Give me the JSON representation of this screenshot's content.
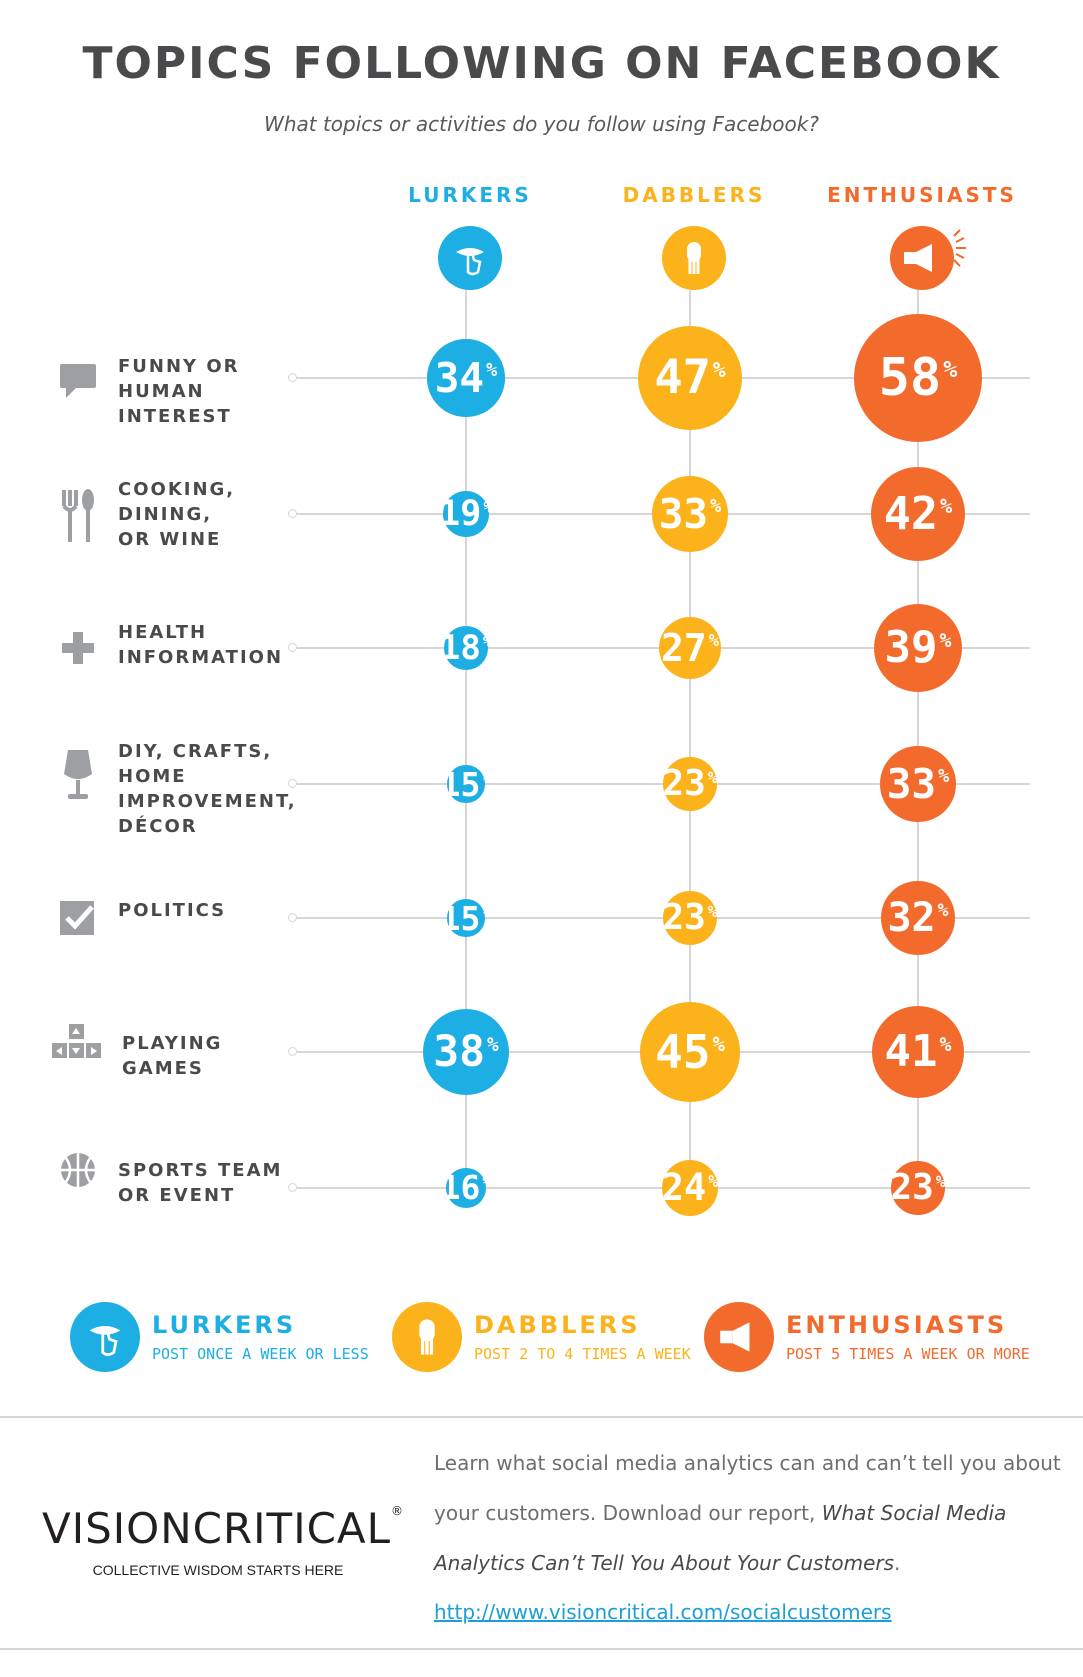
{
  "title": "TOPICS FOLLOWING ON FACEBOOK",
  "subtitle": "What topics or activities do you follow using Facebook?",
  "colors": {
    "lurkers": "#1daee3",
    "dabblers": "#fbb21b",
    "enthusiasts": "#f26b2d"
  },
  "columns": [
    {
      "key": "lurkers",
      "name": "LURKERS",
      "icon": "hand-pointer-icon",
      "color": "#1daee3"
    },
    {
      "key": "dabblers",
      "name": "DABBLERS",
      "icon": "hand-mouse-icon",
      "color": "#fbb21b"
    },
    {
      "key": "enthusiasts",
      "name": "ENTHUSIASTS",
      "icon": "megaphone-icon",
      "color": "#f26b2d"
    }
  ],
  "rows": [
    {
      "label": "FUNNY OR\nHUMAN\nINTEREST",
      "icon": "speech-bubble-icon"
    },
    {
      "label": "COOKING,\nDINING,\nOR WINE",
      "icon": "fork-spoon-icon"
    },
    {
      "label": "HEALTH\nINFORMATION",
      "icon": "plus-icon"
    },
    {
      "label": "DIY, CRAFTS,\nHOME\nIMPROVEMENT,\nDÉCOR",
      "icon": "lamp-icon"
    },
    {
      "label": "POLITICS",
      "icon": "checkbox-icon"
    },
    {
      "label": "PLAYING\nGAMES",
      "icon": "arrow-keys-icon"
    },
    {
      "label": "SPORTS TEAM\nOR EVENT",
      "icon": "ball-icon"
    }
  ],
  "chart_data": {
    "type": "bubble-matrix",
    "title": "TOPICS FOLLOWING ON FACEBOOK",
    "subtitle": "What topics or activities do you follow using Facebook?",
    "categories": [
      "FUNNY OR HUMAN INTEREST",
      "COOKING, DINING, OR WINE",
      "HEALTH INFORMATION",
      "DIY, CRAFTS, HOME IMPROVEMENT, DÉCOR",
      "POLITICS",
      "PLAYING GAMES",
      "SPORTS TEAM OR EVENT"
    ],
    "unit": "%",
    "series": [
      {
        "name": "LURKERS",
        "values": [
          34,
          19,
          18,
          15,
          15,
          38,
          16
        ]
      },
      {
        "name": "DABBLERS",
        "values": [
          47,
          33,
          27,
          23,
          23,
          45,
          24
        ]
      },
      {
        "name": "ENTHUSIASTS",
        "values": [
          58,
          42,
          39,
          33,
          32,
          41,
          23
        ]
      }
    ]
  },
  "legend": [
    {
      "name": "LURKERS",
      "desc": "POST ONCE A WEEK OR LESS"
    },
    {
      "name": "DABBLERS",
      "desc": "POST 2 TO 4 TIMES A WEEK"
    },
    {
      "name": "ENTHUSIASTS",
      "desc": "POST 5 TIMES A WEEK OR MORE"
    }
  ],
  "footer": {
    "logo": "VISIONCRITICAL",
    "logo_mark": "®",
    "tagline": "COLLECTIVE WISDOM STARTS HERE",
    "text_before": "Learn what social media analytics can and can’t tell you about your customers. Download our report, ",
    "report_title": "What Social Media Analytics Can’t Tell You About Your Customers",
    "text_after": ".",
    "link": "http://www.visioncritical.com/socialcustomers"
  }
}
